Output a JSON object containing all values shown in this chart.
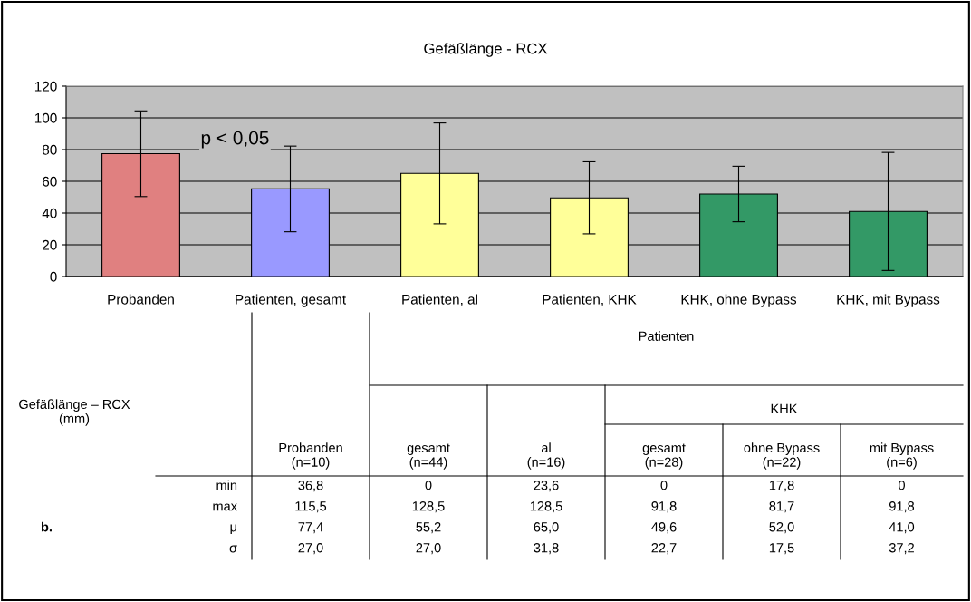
{
  "chart_data": [
    {
      "type": "bar",
      "title": "Gefäßlänge - RCX",
      "categories": [
        "Probanden",
        "Patienten, gesamt",
        "Patienten, al",
        "Patienten, KHK",
        "KHK, ohne Bypass",
        "KHK, mit Bypass"
      ],
      "values": [
        77.4,
        55.2,
        65.0,
        49.6,
        52.0,
        41.0
      ],
      "errors": [
        27.0,
        27.0,
        31.8,
        22.7,
        17.5,
        37.2
      ],
      "colors": [
        "#e08080",
        "#9999ff",
        "#ffff99",
        "#ffff99",
        "#339966",
        "#339966"
      ],
      "ylim": [
        0,
        120
      ],
      "yticks": [
        0,
        20,
        40,
        60,
        80,
        100,
        120
      ],
      "grid": "y",
      "annotations": [
        "p < 0,05"
      ]
    },
    {
      "type": "other",
      "annotations": [
        "Gefäßlänge – RCX\n(mm)",
        "Patienten",
        "KHK",
        "Probanden\n(n=10)",
        "gesamt\n(n=44)",
        "al\n(n=16)",
        "gesamt\n(n=28)",
        "ohne Bypass\n(n=22)",
        "mit Bypass\n(n=6)",
        "min",
        "max",
        "μ",
        "σ",
        "36,8",
        "0",
        "23,6",
        "0",
        "17,8",
        "0",
        "115,5",
        "128,5",
        "128,5",
        "91,8",
        "81,7",
        "91,8",
        "77,4",
        "55,2",
        "65,0",
        "49,6",
        "52,0",
        "41,0",
        "27,0",
        "27,0",
        "31,8",
        "22,7",
        "17,5",
        "37,2",
        "b."
      ]
    }
  ]
}
